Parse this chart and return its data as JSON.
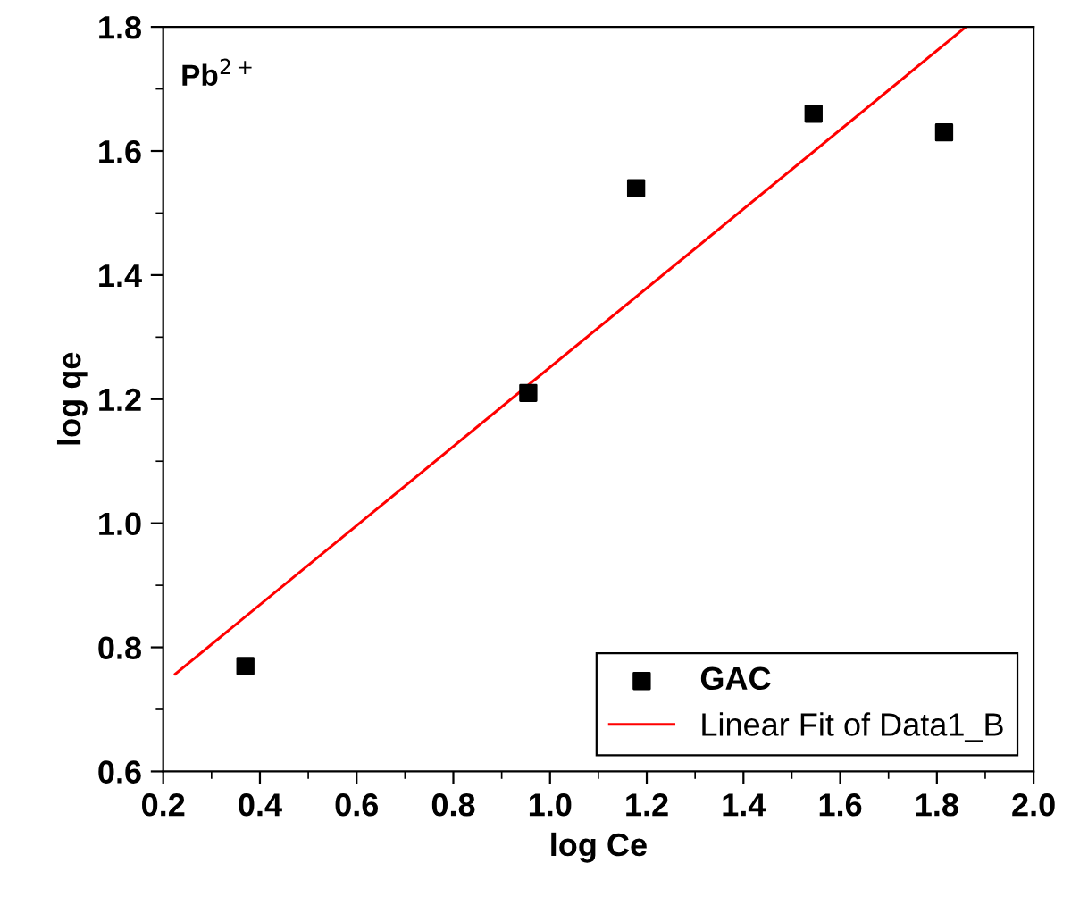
{
  "chart_data": {
    "type": "scatter",
    "xlabel": "log Ce",
    "ylabel": "log qe",
    "annotations": [
      "Pb$^{2+}$"
    ],
    "xlim": [
      0.2,
      2.0
    ],
    "ylim": [
      0.6,
      1.8
    ],
    "xticks": [
      0.2,
      0.4,
      0.6,
      0.8,
      {
        "value": 1,
        "label": "1.0"
      },
      1.2,
      1.4,
      1.6,
      1.8,
      {
        "value": 2,
        "label": "2.0"
      }
    ],
    "yticks": [
      0.6,
      0.8,
      {
        "value": 1,
        "label": "1.0"
      },
      1.2,
      1.4,
      1.6,
      1.8
    ],
    "grid": false,
    "legend": "bottom right",
    "series": [
      {
        "name": "GAC",
        "marker": "square",
        "color": "#000000",
        "x": [
          0.37,
          0.955,
          1.178,
          1.545,
          1.815
        ],
        "values": [
          0.77,
          1.21,
          1.54,
          1.66,
          1.63
        ]
      },
      {
        "name": "Linear Fit of Data1_B",
        "type": "line",
        "color": "#ff0000",
        "line_style": "solid",
        "x": [
          0.225,
          1.86
        ],
        "values": [
          0.757,
          1.8
        ]
      }
    ]
  }
}
